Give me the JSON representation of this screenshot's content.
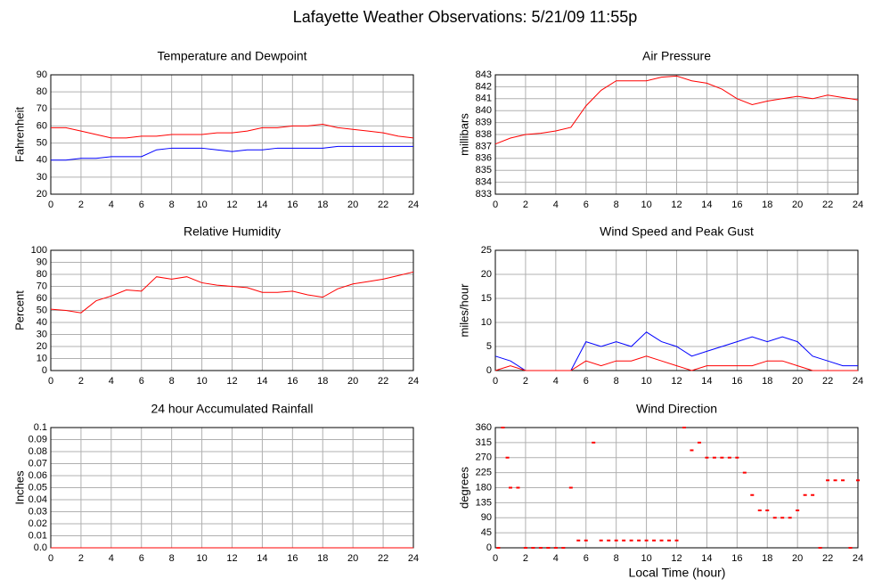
{
  "title": "Lafayette Weather Observations: 5/21/09 11:55p",
  "x_axis_label": "Local Time (hour)",
  "chart_data": [
    {
      "type": "line",
      "title": "Temperature and Dewpoint",
      "ylabel": "Fahrenheit",
      "xlim": [
        0,
        24
      ],
      "xticks": [
        0,
        2,
        4,
        6,
        8,
        10,
        12,
        14,
        16,
        18,
        20,
        22,
        24
      ],
      "ylim": [
        20,
        90
      ],
      "yticks": [
        20,
        30,
        40,
        50,
        60,
        70,
        80,
        90
      ],
      "grid": true,
      "x": [
        0,
        1,
        2,
        3,
        4,
        5,
        6,
        7,
        8,
        9,
        10,
        11,
        12,
        13,
        14,
        15,
        16,
        17,
        18,
        19,
        20,
        21,
        22,
        23,
        24
      ],
      "series": [
        {
          "color": "#ff0000",
          "values": [
            59,
            59,
            57,
            55,
            53,
            53,
            54,
            54,
            55,
            55,
            55,
            56,
            56,
            57,
            59,
            59,
            60,
            60,
            61,
            59,
            58,
            57,
            56,
            54,
            53
          ]
        },
        {
          "color": "#0000ff",
          "values": [
            40,
            40,
            41,
            41,
            42,
            42,
            42,
            46,
            47,
            47,
            47,
            46,
            45,
            46,
            46,
            47,
            47,
            47,
            47,
            48,
            48,
            48,
            48,
            48,
            48
          ]
        }
      ]
    },
    {
      "type": "line",
      "title": "Air Pressure",
      "ylabel": "millibars",
      "xlim": [
        0,
        24
      ],
      "xticks": [
        0,
        2,
        4,
        6,
        8,
        10,
        12,
        14,
        16,
        18,
        20,
        22,
        24
      ],
      "ylim": [
        833,
        843
      ],
      "yticks": [
        833,
        834,
        835,
        836,
        837,
        838,
        839,
        840,
        841,
        842,
        843
      ],
      "grid": true,
      "x": [
        0,
        1,
        2,
        3,
        4,
        5,
        6,
        7,
        8,
        9,
        10,
        11,
        12,
        13,
        14,
        15,
        16,
        17,
        18,
        19,
        20,
        21,
        22,
        23,
        24
      ],
      "series": [
        {
          "color": "#ff0000",
          "values": [
            837.2,
            837.7,
            838,
            838.1,
            838.3,
            838.6,
            840.4,
            841.7,
            842.5,
            842.5,
            842.5,
            842.8,
            842.9,
            842.5,
            842.3,
            841.8,
            841,
            840.5,
            840.8,
            841,
            841.2,
            841,
            841.3,
            841.1,
            840.9
          ]
        }
      ]
    },
    {
      "type": "line",
      "title": "Relative Humidity",
      "ylabel": "Percent",
      "xlim": [
        0,
        24
      ],
      "xticks": [
        0,
        2,
        4,
        6,
        8,
        10,
        12,
        14,
        16,
        18,
        20,
        22,
        24
      ],
      "ylim": [
        0,
        100
      ],
      "yticks": [
        0,
        10,
        20,
        30,
        40,
        50,
        60,
        70,
        80,
        90,
        100
      ],
      "grid": true,
      "x": [
        0,
        1,
        2,
        3,
        4,
        5,
        6,
        7,
        8,
        9,
        10,
        11,
        12,
        13,
        14,
        15,
        16,
        17,
        18,
        19,
        20,
        21,
        22,
        23,
        24
      ],
      "series": [
        {
          "color": "#ff0000",
          "values": [
            51,
            50,
            48,
            58,
            62,
            67,
            66,
            78,
            76,
            78,
            73,
            71,
            70,
            69,
            65,
            65,
            66,
            63,
            61,
            68,
            72,
            74,
            76,
            79,
            82
          ]
        }
      ]
    },
    {
      "type": "line",
      "title": "Wind Speed and Peak Gust",
      "ylabel": "miles/hour",
      "xlim": [
        0,
        24
      ],
      "xticks": [
        0,
        2,
        4,
        6,
        8,
        10,
        12,
        14,
        16,
        18,
        20,
        22,
        24
      ],
      "ylim": [
        0,
        25
      ],
      "yticks": [
        0,
        5,
        10,
        15,
        20,
        25
      ],
      "grid": true,
      "x": [
        0,
        1,
        2,
        3,
        4,
        5,
        6,
        7,
        8,
        9,
        10,
        11,
        12,
        13,
        14,
        15,
        16,
        17,
        18,
        19,
        20,
        21,
        22,
        23,
        24
      ],
      "series": [
        {
          "color": "#0000ff",
          "values": [
            3,
            2,
            0,
            0,
            0,
            0,
            6,
            5,
            6,
            5,
            8,
            6,
            5,
            3,
            4,
            5,
            6,
            7,
            6,
            7,
            6,
            3,
            2,
            1,
            1
          ]
        },
        {
          "color": "#ff0000",
          "values": [
            0,
            1,
            0,
            0,
            0,
            0,
            2,
            1,
            2,
            2,
            3,
            2,
            1,
            0,
            1,
            1,
            1,
            1,
            2,
            2,
            1,
            0,
            0,
            0,
            0
          ]
        }
      ]
    },
    {
      "type": "line",
      "title": "24 hour Accumulated Rainfall",
      "ylabel": "Inches",
      "xlim": [
        0,
        24
      ],
      "xticks": [
        0,
        2,
        4,
        6,
        8,
        10,
        12,
        14,
        16,
        18,
        20,
        22,
        24
      ],
      "ylim": [
        0,
        0.1
      ],
      "yticks": [
        {
          "value": 0,
          "label": "0.0"
        },
        0.01,
        0.02,
        0.03,
        0.04,
        0.05,
        0.06,
        0.07,
        0.08,
        0.09,
        0.1
      ],
      "grid": true,
      "x": [
        0,
        24
      ],
      "series": [
        {
          "color": "#ff0000",
          "values": [
            0,
            0
          ]
        }
      ]
    },
    {
      "type": "scatter",
      "title": "Wind Direction",
      "ylabel": "degrees",
      "xlim": [
        0,
        24
      ],
      "xticks": [
        0,
        2,
        4,
        6,
        8,
        10,
        12,
        14,
        16,
        18,
        20,
        22,
        24
      ],
      "ylim": [
        0,
        360
      ],
      "yticks": [
        0,
        45,
        90,
        135,
        180,
        225,
        270,
        315,
        360
      ],
      "grid": true,
      "x": [
        0.2,
        0.5,
        0.8,
        1,
        1.5,
        2,
        2.5,
        3,
        3.5,
        4,
        4.5,
        5,
        5.5,
        6,
        6.5,
        7,
        7.5,
        8,
        8.5,
        9,
        9.5,
        10,
        10.5,
        11,
        11.5,
        12,
        12.5,
        13,
        13.5,
        14,
        14.5,
        15,
        15.5,
        16,
        16.5,
        17,
        17.5,
        18,
        18.5,
        19,
        19.5,
        20,
        20.5,
        21,
        21.5,
        22,
        22.5,
        23,
        23.5,
        24
      ],
      "series": [
        {
          "color": "#ff0000",
          "values": [
            0,
            360,
            270,
            180,
            180,
            0,
            0,
            0,
            0,
            0,
            0,
            180,
            22,
            22,
            315,
            22,
            22,
            22,
            22,
            22,
            22,
            22,
            22,
            22,
            22,
            22,
            360,
            292,
            315,
            270,
            270,
            270,
            270,
            270,
            225,
            158,
            112,
            112,
            90,
            90,
            90,
            112,
            158,
            158,
            0,
            202,
            202,
            202,
            0,
            202
          ]
        }
      ]
    }
  ]
}
